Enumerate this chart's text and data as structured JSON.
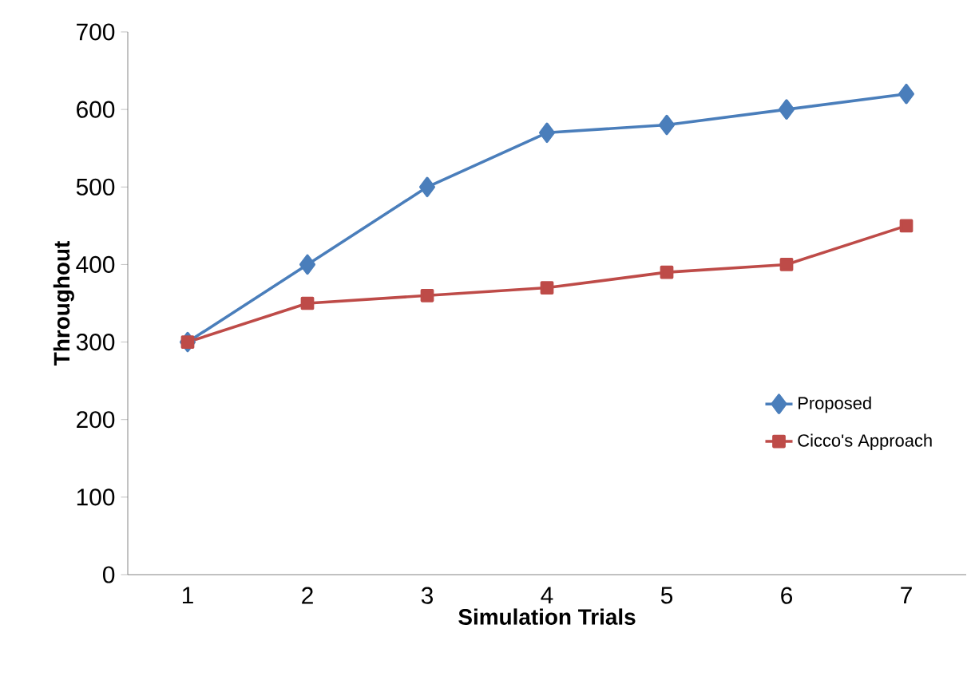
{
  "chart_data": {
    "type": "line",
    "xlabel": "Simulation Trials",
    "ylabel": "Throughout",
    "categories": [
      "1",
      "2",
      "3",
      "4",
      "5",
      "6",
      "7"
    ],
    "series": [
      {
        "name": "Proposed",
        "color": "#4a7ebb",
        "marker": "diamond",
        "values": [
          300,
          400,
          500,
          570,
          580,
          600,
          620
        ]
      },
      {
        "name": "Cicco's Approach",
        "color": "#be4b48",
        "marker": "square",
        "values": [
          300,
          350,
          360,
          370,
          390,
          400,
          450
        ]
      }
    ],
    "ylim": [
      0,
      700
    ],
    "yticks": [
      0,
      100,
      200,
      300,
      400,
      500,
      600,
      700
    ],
    "grid": false,
    "legend": "right",
    "line_style": "solid"
  }
}
